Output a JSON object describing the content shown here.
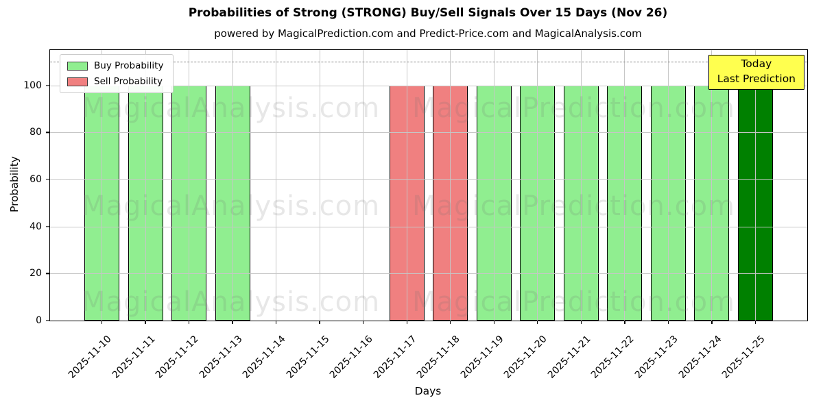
{
  "header": {
    "title": "Probabilities of Strong (STRONG) Buy/Sell Signals Over 15 Days (Nov 26)",
    "subtitle": "powered by MagicalPrediction.com and Predict-Price.com and MagicalAnalysis.com"
  },
  "legend": {
    "items": [
      {
        "label": "Buy Probability",
        "color": "#90EE90"
      },
      {
        "label": "Sell Probability",
        "color": "#F08080"
      }
    ]
  },
  "annotation_box": {
    "line1": "Today",
    "line2": "Last Prediction",
    "bg_color": "#FFFF4F",
    "border_color": "#000000"
  },
  "watermarks": {
    "left_text": "MagicalAnalysis.com",
    "right_text": "MagicalPrediction.com"
  },
  "colors": {
    "buy": "#90EE90",
    "sell": "#F08080",
    "today_bar": "#008000",
    "grid": "#C6C6C6",
    "dashed_line": "#7F7F7F"
  },
  "chart_data": {
    "type": "bar",
    "title": "Probabilities of Strong (STRONG) Buy/Sell Signals Over 15 Days (Nov 26)",
    "xlabel": "Days",
    "ylabel": "Probability",
    "categories": [
      "2025-11-10",
      "2025-11-11",
      "2025-11-12",
      "2025-11-13",
      "2025-11-14",
      "2025-11-15",
      "2025-11-16",
      "2025-11-17",
      "2025-11-18",
      "2025-11-19",
      "2025-11-20",
      "2025-11-21",
      "2025-11-22",
      "2025-11-23",
      "2025-11-24",
      "2025-11-25"
    ],
    "series": [
      {
        "name": "Buy Probability",
        "color": "#90EE90",
        "values": [
          100,
          100,
          100,
          100,
          0,
          0,
          0,
          0,
          0,
          100,
          100,
          100,
          100,
          100,
          100,
          100
        ]
      },
      {
        "name": "Sell Probability",
        "color": "#F08080",
        "values": [
          0,
          0,
          0,
          0,
          0,
          0,
          0,
          100,
          100,
          0,
          0,
          0,
          0,
          0,
          0,
          0
        ]
      }
    ],
    "today_bar": {
      "date": "2025-11-25",
      "color": "#008000"
    },
    "ylim": [
      0,
      115
    ],
    "yticks": [
      0,
      20,
      40,
      60,
      80,
      100
    ],
    "dashed_line_y": 110,
    "grid": true,
    "legend_position": "upper left"
  }
}
